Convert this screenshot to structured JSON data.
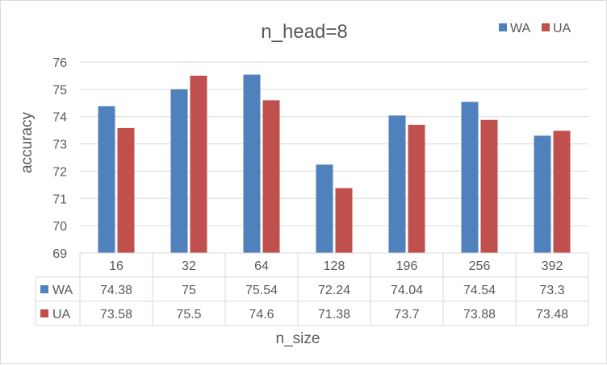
{
  "chart_data": {
    "type": "bar",
    "title": "n_head=8",
    "xlabel": "n_size",
    "ylabel": "accuracy",
    "categories": [
      "16",
      "32",
      "64",
      "128",
      "196",
      "256",
      "392"
    ],
    "series": [
      {
        "name": "WA",
        "color": "#4f81bd",
        "values": [
          74.38,
          75,
          75.54,
          72.24,
          74.04,
          74.54,
          73.3
        ]
      },
      {
        "name": "UA",
        "color": "#c0504d",
        "values": [
          73.58,
          75.5,
          74.6,
          71.38,
          73.7,
          73.88,
          73.48
        ]
      }
    ],
    "ylim": [
      69,
      76
    ],
    "yticks": [
      69,
      70,
      71,
      72,
      73,
      74,
      75,
      76
    ],
    "grid": true,
    "legend_position": "top-right",
    "data_table": true
  }
}
